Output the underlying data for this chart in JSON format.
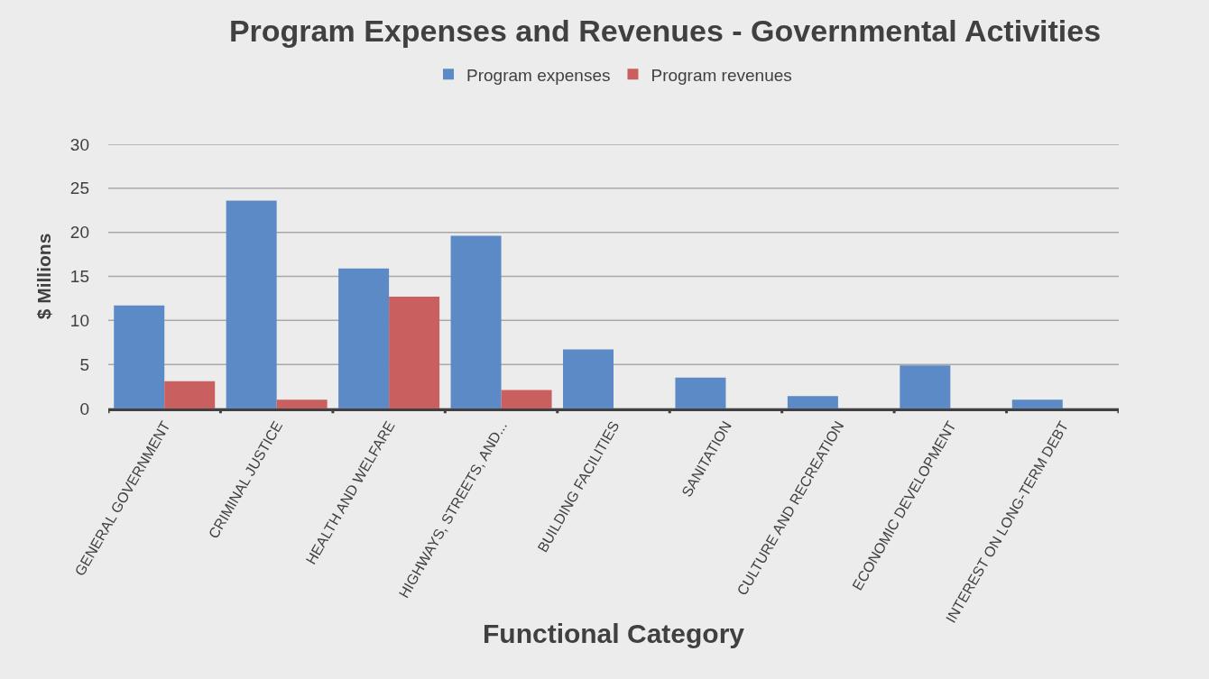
{
  "chart_data": {
    "type": "bar",
    "title": "Program Expenses and Revenues - Governmental Activities",
    "xlabel": "Functional Category",
    "ylabel": "$ Millions",
    "categories": [
      "GENERAL GOVERNMENT",
      "CRIMINAL JUSTICE",
      "HEALTH AND WELFARE",
      "HIGHWAYS, STREETS, AND...",
      "BUILDING FACILITIES",
      "SANITATION",
      "CULTURE AND RECREATION",
      "ECONOMIC DEVELOPMENT",
      "INTEREST ON LONG-TERM DEBT"
    ],
    "series": [
      {
        "name": "Program expenses",
        "color": "#5b8ac6",
        "values": [
          11.7,
          23.6,
          15.9,
          19.6,
          6.7,
          3.5,
          1.4,
          4.9,
          1.0
        ]
      },
      {
        "name": "Program revenues",
        "color": "#c9605f",
        "values": [
          3.1,
          1.0,
          12.7,
          2.1,
          null,
          null,
          null,
          null,
          null
        ]
      }
    ],
    "ylim": [
      0,
      30
    ],
    "yticks": [
      0,
      5,
      10,
      15,
      20,
      25,
      30
    ],
    "grid": "y",
    "legend": "top"
  }
}
